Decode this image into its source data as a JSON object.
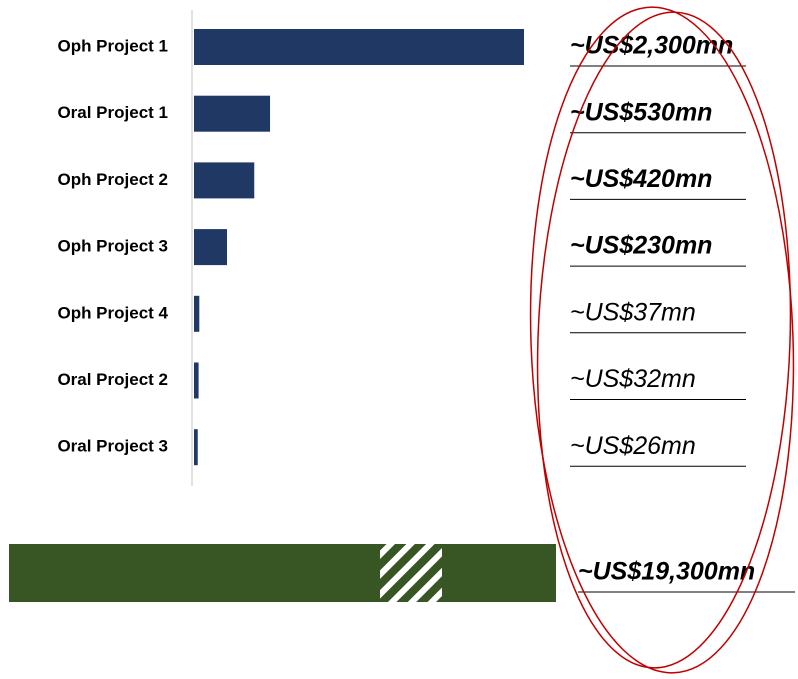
{
  "chart_data": {
    "type": "bar",
    "orientation": "horizontal",
    "categories": [
      "Oph Project 1",
      "Oral Project 1",
      "Oph Project 2",
      "Oph Project 3",
      "Oph Project 4",
      "Oral Project 2",
      "Oral Project 3"
    ],
    "values": [
      2300,
      530,
      420,
      230,
      37,
      32,
      26
    ],
    "value_labels": [
      "~US$2,300mn",
      "~US$530mn",
      "~US$420mn",
      "~US$230mn",
      "~US$37mn",
      "~US$32mn",
      "~US$26mn"
    ],
    "value_label_bold": [
      true,
      true,
      true,
      true,
      false,
      false,
      false
    ],
    "color": "#1f3864",
    "xlim": [
      0,
      2300
    ],
    "total": {
      "value": 19300,
      "value_label": "~US$19,300mn",
      "color": "#375623"
    }
  }
}
